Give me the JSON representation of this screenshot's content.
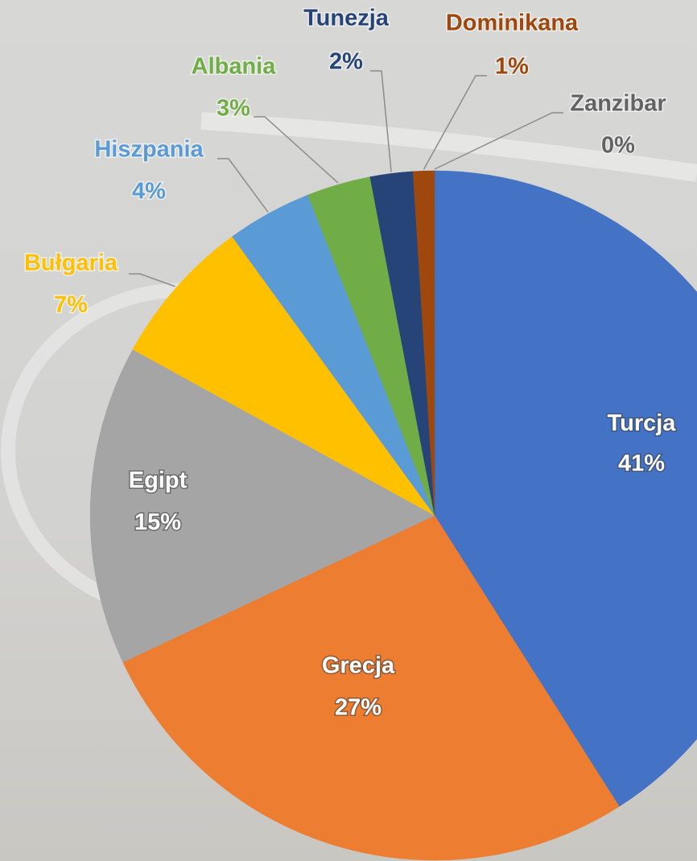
{
  "chart_data": {
    "type": "pie",
    "categories": [
      "Turcja",
      "Grecja",
      "Egipt",
      "Bułgaria",
      "Hiszpania",
      "Albania",
      "Tunezja",
      "Dominikana",
      "Zanzibar"
    ],
    "values": [
      41,
      27,
      15,
      7,
      4,
      3,
      2,
      1,
      0
    ],
    "value_labels": [
      "41%",
      "27%",
      "15%",
      "7%",
      "4%",
      "3%",
      "2%",
      "1%",
      "0%"
    ],
    "colors": [
      "#4472c4",
      "#ed7d31",
      "#a5a5a5",
      "#ffc000",
      "#5b9bd5",
      "#70ad47",
      "#264478",
      "#9e480e",
      "#636363"
    ]
  }
}
